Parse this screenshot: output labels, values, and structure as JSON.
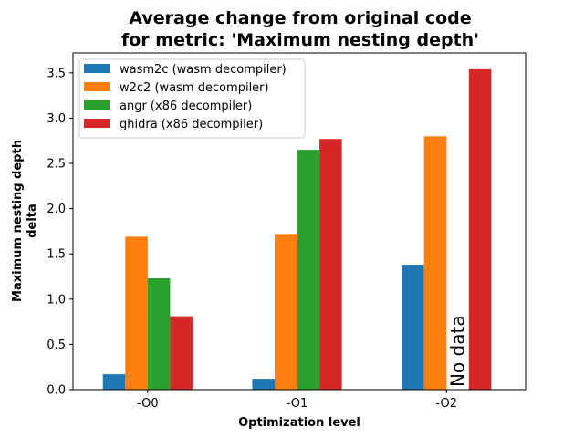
{
  "chart_data": {
    "type": "bar",
    "title_lines": [
      "Average change from original code",
      "for metric: 'Maximum nesting depth'"
    ],
    "xlabel": "Optimization level",
    "ylabel_lines": [
      "Maximum nesting depth",
      "delta"
    ],
    "categories": [
      "-O0",
      "-O1",
      "-O2"
    ],
    "ylim": [
      0,
      3.72
    ],
    "yticks": [
      0.0,
      0.5,
      1.0,
      1.5,
      2.0,
      2.5,
      3.0,
      3.5
    ],
    "ytick_labels": [
      "0.0",
      "0.5",
      "1.0",
      "1.5",
      "2.0",
      "2.5",
      "3.0",
      "3.5"
    ],
    "grid": false,
    "legend_position": "top-left",
    "series": [
      {
        "name": "wasm2c (wasm decompiler)",
        "color": "#1f77b4",
        "values": [
          0.17,
          0.12,
          1.38
        ]
      },
      {
        "name": "w2c2 (wasm decompiler)",
        "color": "#ff7f0e",
        "values": [
          1.69,
          1.72,
          2.8
        ]
      },
      {
        "name": "angr (x86 decompiler)",
        "color": "#2ca02c",
        "values": [
          1.23,
          2.65,
          null
        ]
      },
      {
        "name": "ghidra (x86 decompiler)",
        "color": "#d62728",
        "values": [
          0.81,
          2.77,
          3.54
        ]
      }
    ],
    "annotations": [
      {
        "text": "No data",
        "category": "-O2",
        "series": "angr (x86 decompiler)"
      }
    ]
  }
}
